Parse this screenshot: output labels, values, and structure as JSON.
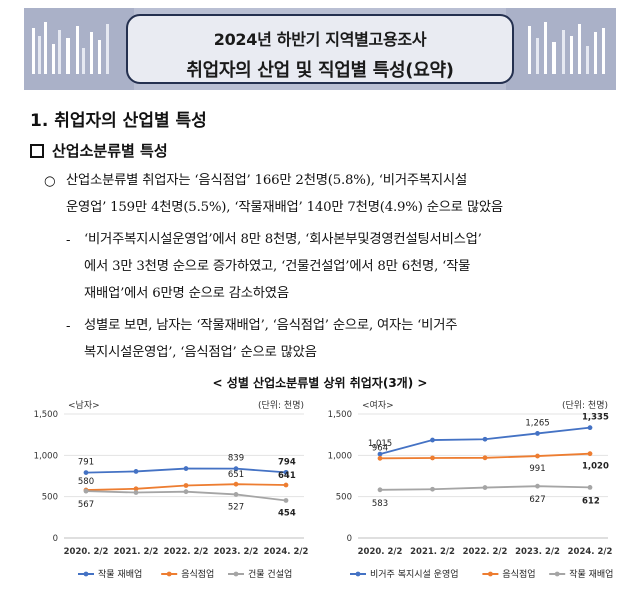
{
  "banner": {
    "title_line1": "2024년 하반기 지역별고용조사",
    "title_line2": "취업자의 산업 및 직업별 특성(요약)",
    "bg_color": "#b9bfd3",
    "border_color": "#24304f"
  },
  "heading1": "1. 취업자의 산업별 특성",
  "heading2": "산업소분류별 특성",
  "bullet_circle": "○",
  "bullet_dash": "-",
  "paragraph1": {
    "line1": "산업소분류별 취업자는 ‘음식점업’ 166만 2천명(5.8%), ‘비거주복지시설",
    "line2": "운영업’ 159만 4천명(5.5%), ‘작물재배업’ 140만 7천명(4.9%) 순으로 많았음"
  },
  "paragraph2": {
    "line1": "‘비거주복지시설운영업’에서 8만 8천명, ‘회사본부및경영컨설팅서비스업’",
    "line2": "에서 3만 3천명 순으로 증가하였고, ‘건물건설업’에서 8만 6천명, ‘작물",
    "line3": "재배업’에서 6만명 순으로 감소하였음"
  },
  "paragraph3": {
    "line1": "성별로 보면, 남자는 ‘작물재배업’, ‘음식점업’ 순으로, 여자는 ‘비거주",
    "line2": "복지시설운영업’, ‘음식점업’ 순으로 많았음"
  },
  "figure_caption": "< 성별 산업소분류별 상위 취업자(3개) >",
  "chart_data": [
    {
      "type": "line",
      "title": "<남자>",
      "unit_label": "(단위: 천명)",
      "x": [
        "2020. 2/2",
        "2021. 2/2",
        "2022. 2/2",
        "2023. 2/2",
        "2024. 2/2"
      ],
      "ylim": [
        0,
        1500
      ],
      "yticks": [
        "0",
        "500",
        "1,000",
        "1,500"
      ],
      "grid": true,
      "legend_position": "bottom",
      "series": [
        {
          "name": "작물 재배업",
          "color": "#4472c4",
          "values": [
            791,
            805,
            840,
            839,
            794
          ],
          "labels": [
            "791",
            "",
            "",
            "839",
            "794"
          ]
        },
        {
          "name": "음식점업",
          "color": "#ed7d31",
          "values": [
            580,
            595,
            635,
            651,
            641
          ],
          "labels": [
            "580",
            "",
            "",
            "651",
            "641"
          ]
        },
        {
          "name": "건물 건설업",
          "color": "#a5a5a5",
          "values": [
            567,
            550,
            560,
            527,
            454
          ],
          "labels": [
            "567",
            "",
            "",
            "527",
            "454"
          ]
        }
      ]
    },
    {
      "type": "line",
      "title": "<여자>",
      "unit_label": "(단위: 천명)",
      "x": [
        "2020. 2/2",
        "2021. 2/2",
        "2022. 2/2",
        "2023. 2/2",
        "2024. 2/2"
      ],
      "ylim": [
        0,
        1500
      ],
      "yticks": [
        "0",
        "500",
        "1,000",
        "1,500"
      ],
      "grid": true,
      "legend_position": "bottom",
      "series": [
        {
          "name": "비거주 복지시설 운영업",
          "color": "#4472c4",
          "values": [
            1015,
            1185,
            1195,
            1265,
            1335
          ],
          "labels": [
            "1,015",
            "",
            "",
            "1,265",
            "1,335"
          ]
        },
        {
          "name": "음식점업",
          "color": "#ed7d31",
          "values": [
            964,
            968,
            970,
            991,
            1020
          ],
          "labels": [
            "964",
            "",
            "",
            "991",
            "1,020"
          ]
        },
        {
          "name": "작물 재배업",
          "color": "#a5a5a5",
          "values": [
            583,
            590,
            610,
            627,
            612
          ],
          "labels": [
            "583",
            "",
            "",
            "627",
            "612"
          ]
        }
      ]
    }
  ]
}
